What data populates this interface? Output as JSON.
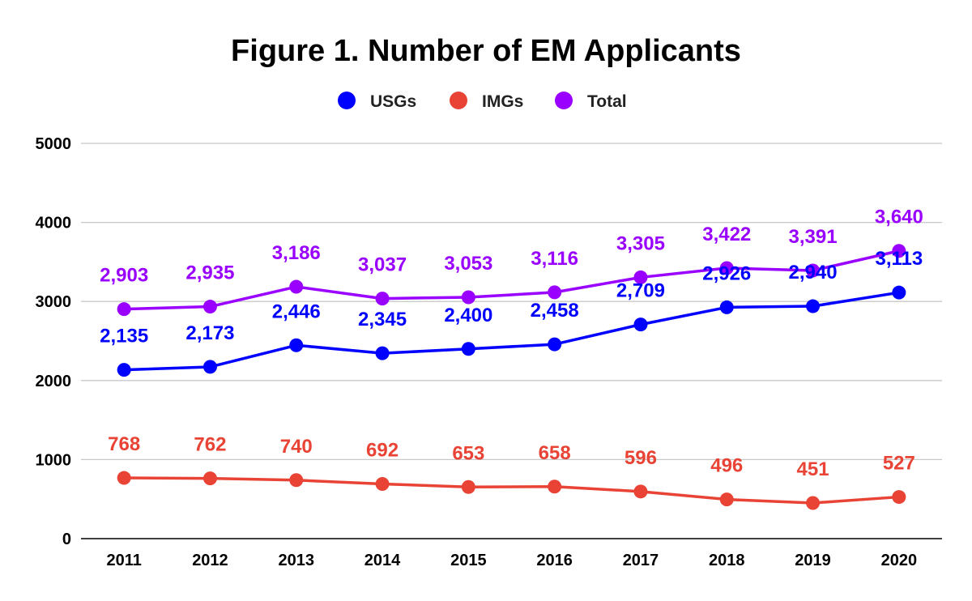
{
  "chart_data": {
    "type": "line",
    "title": "Figure 1. Number of EM Applicants",
    "x": [
      "2011",
      "2012",
      "2013",
      "2014",
      "2015",
      "2016",
      "2017",
      "2018",
      "2019",
      "2020"
    ],
    "ylim": [
      0,
      5000
    ],
    "yticks": [
      0,
      1000,
      2000,
      3000,
      4000,
      5000
    ],
    "ytick_labels": [
      "0",
      "1000",
      "2000",
      "3000",
      "4000",
      "5000"
    ],
    "grid": true,
    "legend_position": "top",
    "series": [
      {
        "name": "USGs",
        "color": "#0000ff",
        "values": [
          2135,
          2173,
          2446,
          2345,
          2400,
          2458,
          2709,
          2926,
          2940,
          3113
        ],
        "labels": [
          "2,135",
          "2,173",
          "2,446",
          "2,345",
          "2,400",
          "2,458",
          "2,709",
          "2,926",
          "2,940",
          "3,113"
        ]
      },
      {
        "name": "IMGs",
        "color": "#e84335",
        "values": [
          768,
          762,
          740,
          692,
          653,
          658,
          596,
          496,
          451,
          527
        ],
        "labels": [
          "768",
          "762",
          "740",
          "692",
          "653",
          "658",
          "596",
          "496",
          "451",
          "527"
        ]
      },
      {
        "name": "Total",
        "color": "#9900ff",
        "values": [
          2903,
          2935,
          3186,
          3037,
          3053,
          3116,
          3305,
          3422,
          3391,
          3640
        ],
        "labels": [
          "2,903",
          "2,935",
          "3,186",
          "3,037",
          "3,053",
          "3,116",
          "3,305",
          "3,422",
          "3,391",
          "3,640"
        ]
      }
    ]
  }
}
